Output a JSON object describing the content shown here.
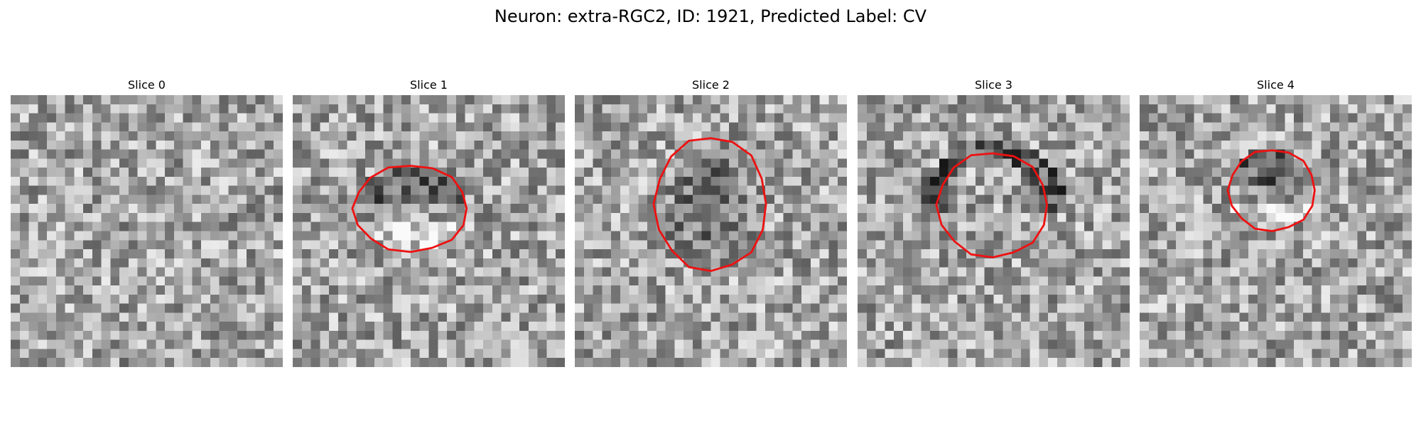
{
  "figure": {
    "title": "Neuron: extra-RGC2, ID: 1921, Predicted Label: CV"
  },
  "panels": [
    {
      "title": "Slice 0",
      "seed": 11,
      "has_contour": false,
      "dark_region": "none"
    },
    {
      "title": "Slice 1",
      "seed": 23,
      "has_contour": true,
      "dark_region": "inside-top"
    },
    {
      "title": "Slice 2",
      "seed": 37,
      "has_contour": true,
      "dark_region": "inside"
    },
    {
      "title": "Slice 3",
      "seed": 53,
      "has_contour": true,
      "dark_region": "rim"
    },
    {
      "title": "Slice 4",
      "seed": 71,
      "has_contour": true,
      "dark_region": "inside-top"
    }
  ],
  "colors": {
    "contour": "#ee1111"
  }
}
